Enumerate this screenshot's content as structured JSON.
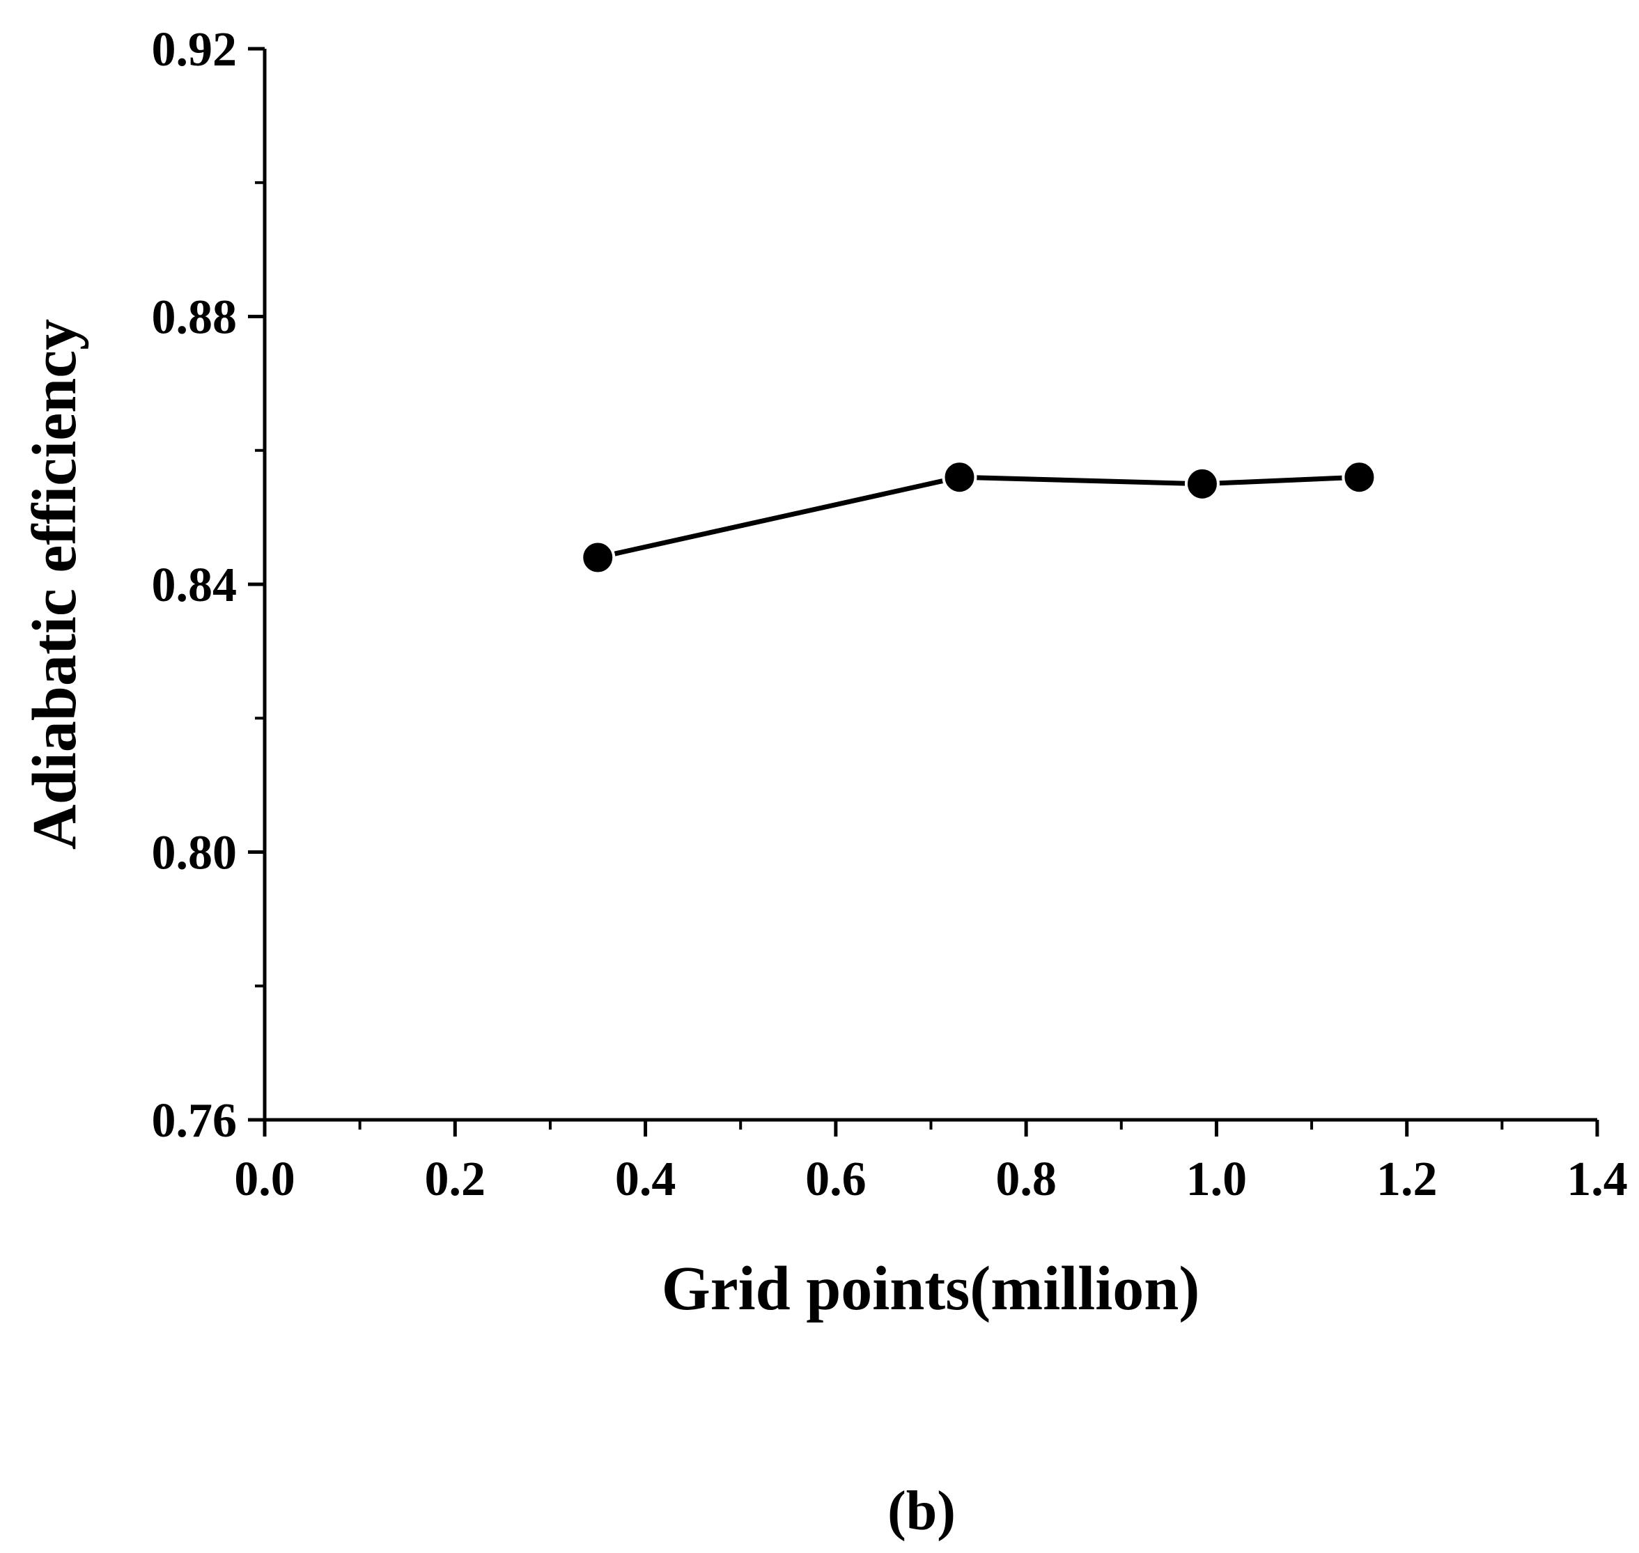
{
  "chart_data": {
    "type": "line",
    "title": "",
    "xlabel": "Grid points(million)",
    "ylabel": "Adiabatic efficiency",
    "xlim": [
      0.0,
      1.4
    ],
    "ylim": [
      0.76,
      0.92
    ],
    "x_ticks": [
      "0.0",
      "0.2",
      "0.4",
      "0.6",
      "0.8",
      "1.0",
      "1.2",
      "1.4"
    ],
    "y_ticks": [
      "0.76",
      "0.80",
      "0.84",
      "0.88",
      "0.92"
    ],
    "grid": false,
    "series": [
      {
        "name": "Adiabatic efficiency",
        "x": [
          0.35,
          0.73,
          0.985,
          1.15
        ],
        "y": [
          0.844,
          0.856,
          0.855,
          0.856
        ],
        "color": "#000000",
        "marker": "circle"
      }
    ],
    "caption": "(b)"
  }
}
